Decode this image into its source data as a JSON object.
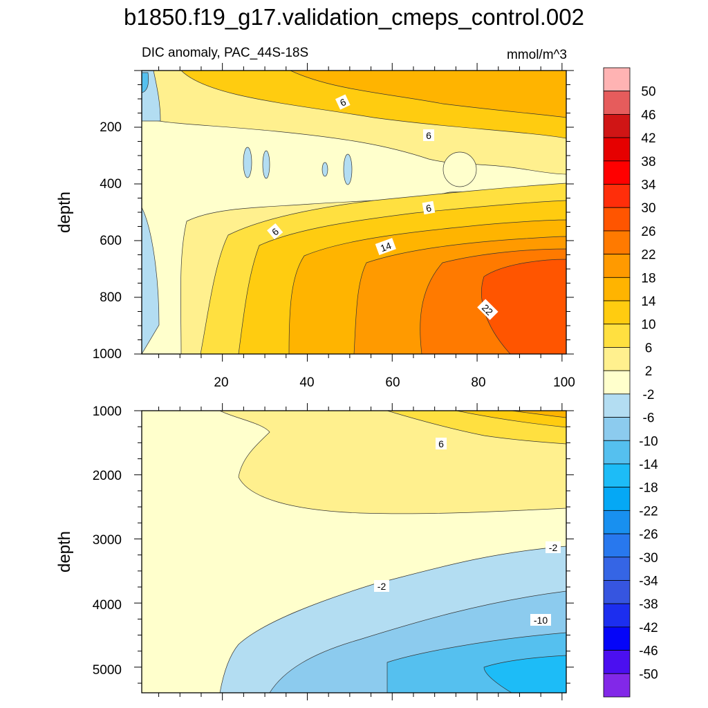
{
  "chart_data": {
    "type": "contour",
    "title": "b1850.f19_g17.validation_cmeps_control.002",
    "subtitle_left": "DIC anomaly, PAC_44S-18S",
    "units": "mmol/m^3",
    "colorbar": {
      "labels": [
        "50",
        "46",
        "42",
        "38",
        "34",
        "30",
        "26",
        "22",
        "18",
        "14",
        "10",
        "6",
        "2",
        "-2",
        "-6",
        "-10",
        "-14",
        "-18",
        "-22",
        "-26",
        "-30",
        "-34",
        "-38",
        "-42",
        "-46",
        "-50"
      ],
      "colors": [
        "#ffb3b3",
        "#e65c5c",
        "#d01515",
        "#e60000",
        "#ff0000",
        "#ff2e0a",
        "#ff5500",
        "#ff7a00",
        "#ff9a00",
        "#ffb400",
        "#ffcc10",
        "#ffe040",
        "#fff08e",
        "#ffffcc",
        "#b3ddf2",
        "#8ccbee",
        "#55c0ef",
        "#1dbcf7",
        "#05a8f5",
        "#1890f0",
        "#2878ee",
        "#3565e5",
        "#3655e0",
        "#1c2eef",
        "#0505f8",
        "#4b0ff0",
        "#8228e8"
      ]
    },
    "panels": [
      {
        "name": "upper",
        "xlim": [
          1,
          101
        ],
        "ylim": [
          1000,
          0
        ],
        "xticks": [
          "20",
          "40",
          "60",
          "80",
          "100"
        ],
        "xtick_values": [
          20,
          40,
          60,
          80,
          100
        ],
        "yticks": [
          "200",
          "400",
          "600",
          "800",
          "1000"
        ],
        "ytick_values": [
          200,
          400,
          600,
          800,
          1000
        ],
        "ylabel": "depth",
        "contour_labels": [
          "6",
          "6",
          "6",
          "6",
          "14",
          "22"
        ]
      },
      {
        "name": "lower",
        "xlim": [
          1,
          101
        ],
        "ylim": [
          5400,
          1000
        ],
        "xticks": [],
        "yticks": [
          "1000",
          "2000",
          "3000",
          "4000",
          "5000"
        ],
        "ytick_values": [
          1000,
          2000,
          3000,
          4000,
          5000
        ],
        "ylabel": "depth",
        "contour_labels": [
          "6",
          "-2",
          "-2",
          "-10"
        ]
      }
    ]
  }
}
